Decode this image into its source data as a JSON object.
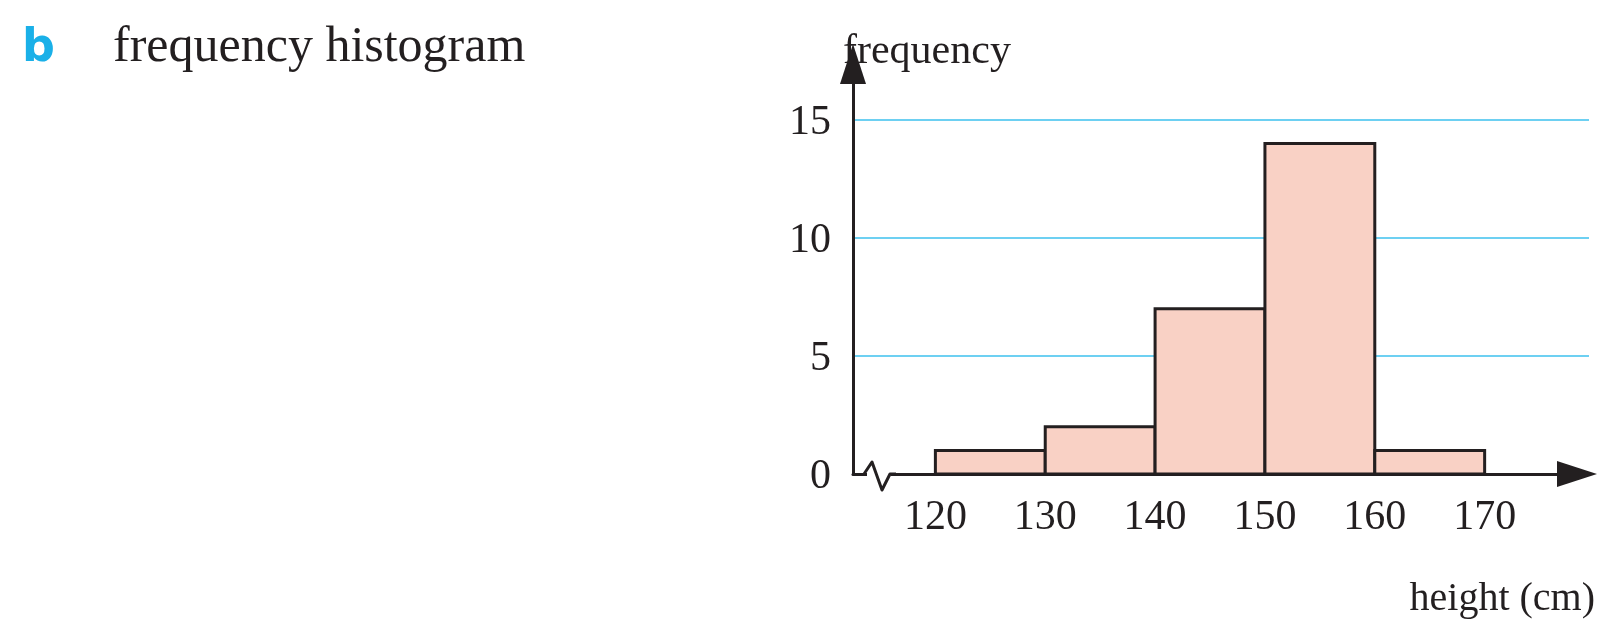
{
  "chart_data": {
    "type": "histogram",
    "title": "frequency histogram",
    "annotations": [
      "b"
    ],
    "xlabel": "height (cm)",
    "ylabel": "frequency",
    "bins": [
      120,
      130,
      140,
      150,
      160,
      170
    ],
    "values": [
      1,
      2,
      7,
      14,
      1
    ],
    "color": "#f9d1c5",
    "xlim": [
      112.5,
      179.5
    ],
    "xticks": [
      120,
      130,
      140,
      150,
      160,
      170
    ],
    "ylim": [
      0,
      16.6
    ],
    "yticks": [
      0,
      5,
      10,
      15
    ],
    "grid": "y"
  }
}
